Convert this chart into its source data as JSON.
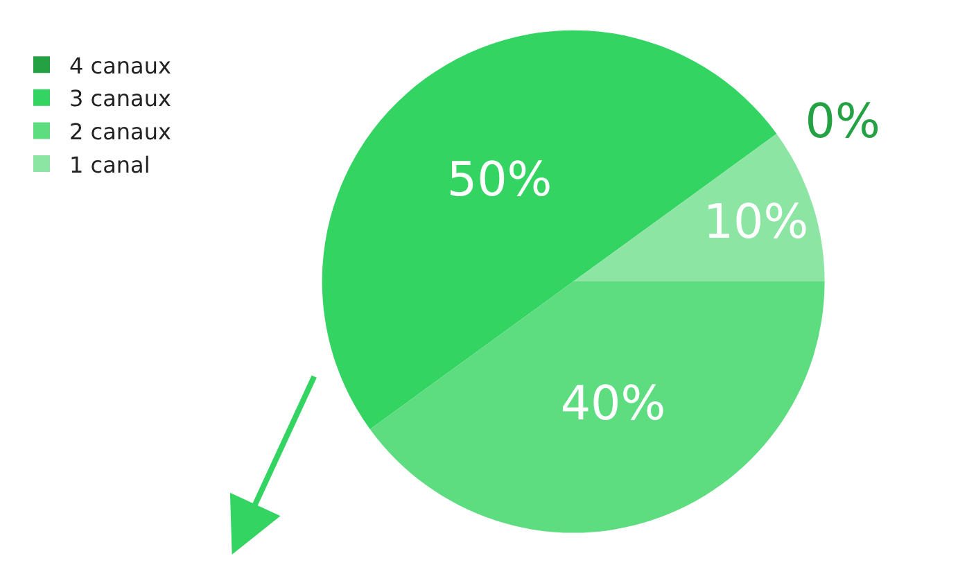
{
  "chart_data": {
    "type": "pie",
    "categories": [
      "4 canaux",
      "3 canaux",
      "2 canaux",
      "1 canal"
    ],
    "values": [
      0,
      50,
      40,
      10
    ],
    "colors": [
      "#23a143",
      "#34d463",
      "#5ddd80",
      "#8de5a4"
    ],
    "value_labels": [
      "0%",
      "50%",
      "40%",
      "10%"
    ],
    "legend": "left"
  }
}
